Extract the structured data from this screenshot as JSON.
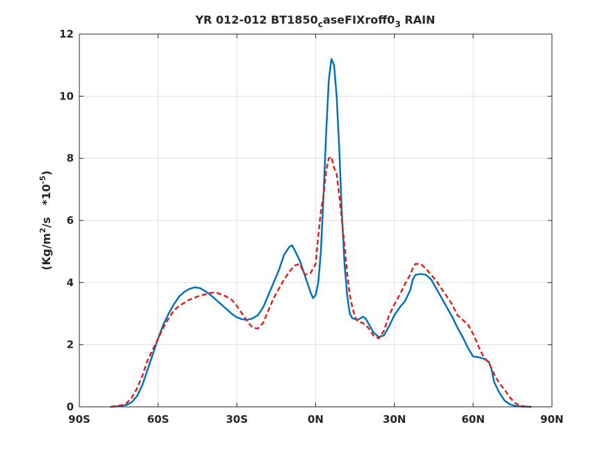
{
  "chart_data": {
    "type": "line",
    "title": {
      "main": "YR 012-012 BT1850",
      "sub1": "c",
      "mid": "aseFIXroff0",
      "sub2": "3",
      "tail": " RAIN"
    },
    "ylabel": {
      "part1": "(Kg/m",
      "sup1": "2",
      "part2": "/s   *10",
      "sup2": "-5",
      "part3": ")"
    },
    "xlabel": "",
    "xlim": [
      -90,
      90
    ],
    "ylim": [
      0,
      12
    ],
    "grid": true,
    "xticks": [
      {
        "value": -90,
        "label": "90S"
      },
      {
        "value": -60,
        "label": "60S"
      },
      {
        "value": -30,
        "label": "30S"
      },
      {
        "value": 0,
        "label": "0N"
      },
      {
        "value": 30,
        "label": "30N"
      },
      {
        "value": 60,
        "label": "60N"
      },
      {
        "value": 90,
        "label": "90N"
      }
    ],
    "yticks": [
      {
        "value": 0,
        "label": "0"
      },
      {
        "value": 2,
        "label": "2"
      },
      {
        "value": 4,
        "label": "4"
      },
      {
        "value": 6,
        "label": "6"
      },
      {
        "value": 8,
        "label": "8"
      },
      {
        "value": 10,
        "label": "10"
      },
      {
        "value": 12,
        "label": "12"
      }
    ],
    "series": [
      {
        "color": "#0072BD",
        "style": "solid",
        "points": [
          [
            -78,
            0
          ],
          [
            -74,
            0.03
          ],
          [
            -72,
            0.06
          ],
          [
            -70,
            0.15
          ],
          [
            -68,
            0.35
          ],
          [
            -66,
            0.7
          ],
          [
            -64,
            1.2
          ],
          [
            -62,
            1.7
          ],
          [
            -60,
            2.2
          ],
          [
            -58,
            2.65
          ],
          [
            -56,
            3.0
          ],
          [
            -54,
            3.3
          ],
          [
            -52,
            3.55
          ],
          [
            -50,
            3.7
          ],
          [
            -48,
            3.8
          ],
          [
            -46,
            3.85
          ],
          [
            -44,
            3.82
          ],
          [
            -42,
            3.72
          ],
          [
            -40,
            3.6
          ],
          [
            -38,
            3.45
          ],
          [
            -36,
            3.3
          ],
          [
            -34,
            3.15
          ],
          [
            -32,
            3.0
          ],
          [
            -30,
            2.88
          ],
          [
            -28,
            2.82
          ],
          [
            -26,
            2.8
          ],
          [
            -24,
            2.85
          ],
          [
            -22,
            2.95
          ],
          [
            -20,
            3.2
          ],
          [
            -18,
            3.6
          ],
          [
            -16,
            4.0
          ],
          [
            -14,
            4.4
          ],
          [
            -12,
            4.9
          ],
          [
            -10,
            5.15
          ],
          [
            -9,
            5.2
          ],
          [
            -8,
            5.05
          ],
          [
            -6,
            4.7
          ],
          [
            -4,
            4.2
          ],
          [
            -2,
            3.7
          ],
          [
            -1,
            3.5
          ],
          [
            0,
            3.6
          ],
          [
            1,
            4.0
          ],
          [
            2,
            5.0
          ],
          [
            3,
            6.8
          ],
          [
            4,
            8.8
          ],
          [
            5,
            10.5
          ],
          [
            6,
            11.2
          ],
          [
            7,
            11.0
          ],
          [
            8,
            10.0
          ],
          [
            9,
            8.3
          ],
          [
            10,
            6.2
          ],
          [
            11,
            4.6
          ],
          [
            12,
            3.6
          ],
          [
            13,
            3.0
          ],
          [
            14,
            2.85
          ],
          [
            16,
            2.8
          ],
          [
            18,
            2.9
          ],
          [
            19,
            2.85
          ],
          [
            20,
            2.7
          ],
          [
            22,
            2.4
          ],
          [
            24,
            2.25
          ],
          [
            26,
            2.3
          ],
          [
            28,
            2.6
          ],
          [
            30,
            2.95
          ],
          [
            32,
            3.2
          ],
          [
            34,
            3.4
          ],
          [
            36,
            3.75
          ],
          [
            37,
            4.1
          ],
          [
            38,
            4.25
          ],
          [
            40,
            4.28
          ],
          [
            42,
            4.25
          ],
          [
            44,
            4.1
          ],
          [
            46,
            3.8
          ],
          [
            48,
            3.5
          ],
          [
            50,
            3.2
          ],
          [
            52,
            2.9
          ],
          [
            54,
            2.55
          ],
          [
            56,
            2.25
          ],
          [
            58,
            1.9
          ],
          [
            60,
            1.62
          ],
          [
            62,
            1.6
          ],
          [
            64,
            1.55
          ],
          [
            66,
            1.45
          ],
          [
            67,
            1.2
          ],
          [
            68,
            0.8
          ],
          [
            70,
            0.45
          ],
          [
            72,
            0.2
          ],
          [
            74,
            0.08
          ],
          [
            76,
            0.03
          ],
          [
            78,
            0.01
          ],
          [
            82,
            0
          ]
        ]
      },
      {
        "color": "#E0201B",
        "style": "dashed",
        "points": [
          [
            -78,
            0
          ],
          [
            -74,
            0.05
          ],
          [
            -72,
            0.12
          ],
          [
            -70,
            0.3
          ],
          [
            -68,
            0.6
          ],
          [
            -66,
            1.0
          ],
          [
            -64,
            1.5
          ],
          [
            -62,
            1.85
          ],
          [
            -60,
            2.2
          ],
          [
            -58,
            2.55
          ],
          [
            -56,
            2.85
          ],
          [
            -54,
            3.1
          ],
          [
            -52,
            3.25
          ],
          [
            -50,
            3.35
          ],
          [
            -48,
            3.45
          ],
          [
            -46,
            3.52
          ],
          [
            -44,
            3.58
          ],
          [
            -42,
            3.62
          ],
          [
            -40,
            3.67
          ],
          [
            -38,
            3.68
          ],
          [
            -36,
            3.62
          ],
          [
            -34,
            3.55
          ],
          [
            -32,
            3.45
          ],
          [
            -30,
            3.25
          ],
          [
            -28,
            3.0
          ],
          [
            -26,
            2.75
          ],
          [
            -24,
            2.55
          ],
          [
            -22,
            2.52
          ],
          [
            -20,
            2.7
          ],
          [
            -18,
            3.1
          ],
          [
            -16,
            3.5
          ],
          [
            -14,
            3.8
          ],
          [
            -12,
            4.1
          ],
          [
            -10,
            4.35
          ],
          [
            -8,
            4.55
          ],
          [
            -6,
            4.6
          ],
          [
            -5,
            4.4
          ],
          [
            -4,
            4.25
          ],
          [
            -2,
            4.3
          ],
          [
            0,
            4.6
          ],
          [
            1,
            5.5
          ],
          [
            2,
            6.3
          ],
          [
            3,
            6.8
          ],
          [
            4,
            7.6
          ],
          [
            5,
            8.0
          ],
          [
            6,
            8.05
          ],
          [
            7,
            7.7
          ],
          [
            8,
            7.5
          ],
          [
            9,
            6.8
          ],
          [
            10,
            6.0
          ],
          [
            11,
            5.2
          ],
          [
            12,
            4.3
          ],
          [
            13,
            3.6
          ],
          [
            14,
            3.2
          ],
          [
            15,
            2.9
          ],
          [
            16,
            2.75
          ],
          [
            18,
            2.7
          ],
          [
            20,
            2.55
          ],
          [
            22,
            2.3
          ],
          [
            24,
            2.2
          ],
          [
            26,
            2.45
          ],
          [
            28,
            2.95
          ],
          [
            30,
            3.3
          ],
          [
            32,
            3.6
          ],
          [
            34,
            3.95
          ],
          [
            36,
            4.25
          ],
          [
            37,
            4.45
          ],
          [
            38,
            4.6
          ],
          [
            40,
            4.6
          ],
          [
            42,
            4.45
          ],
          [
            44,
            4.25
          ],
          [
            46,
            4.05
          ],
          [
            48,
            3.8
          ],
          [
            50,
            3.55
          ],
          [
            52,
            3.3
          ],
          [
            54,
            2.95
          ],
          [
            56,
            2.8
          ],
          [
            58,
            2.65
          ],
          [
            60,
            2.35
          ],
          [
            62,
            1.95
          ],
          [
            64,
            1.6
          ],
          [
            66,
            1.42
          ],
          [
            68,
            1.05
          ],
          [
            70,
            0.75
          ],
          [
            72,
            0.55
          ],
          [
            74,
            0.3
          ],
          [
            76,
            0.12
          ],
          [
            78,
            0.04
          ],
          [
            80,
            0.01
          ],
          [
            82,
            0
          ]
        ]
      }
    ]
  }
}
